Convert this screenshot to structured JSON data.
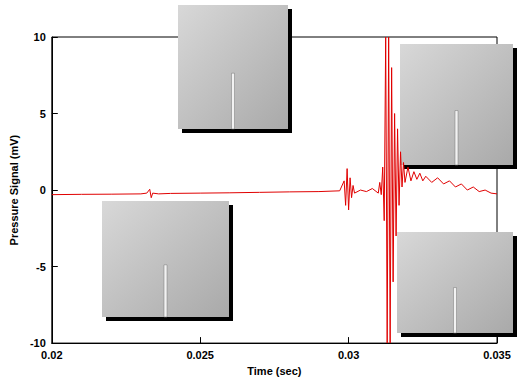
{
  "chart_data": {
    "type": "line",
    "x_label": "Time (sec)",
    "y_label": "Pressure Signal (mV)",
    "color": "#e00000",
    "grid": false,
    "xlim": [
      0.02,
      0.035
    ],
    "xticks": [
      0.02,
      0.025,
      0.03,
      0.035
    ],
    "ylim": [
      -10,
      10
    ],
    "yticks": [
      -10,
      -5,
      0,
      5,
      10
    ],
    "x": [
      0.02,
      0.021,
      0.022,
      0.023,
      0.0232,
      0.0233,
      0.02335,
      0.0234,
      0.0236,
      0.024,
      0.025,
      0.026,
      0.027,
      0.028,
      0.029,
      0.0297,
      0.02985,
      0.0299,
      0.02995,
      0.03,
      0.03005,
      0.0301,
      0.03015,
      0.0302,
      0.0304,
      0.0306,
      0.0308,
      0.031,
      0.03105,
      0.0311,
      0.03115,
      0.0312,
      0.03125,
      0.0313,
      0.03135,
      0.0314,
      0.03145,
      0.0315,
      0.03155,
      0.0316,
      0.03165,
      0.0317,
      0.03175,
      0.0318,
      0.03185,
      0.0319,
      0.032,
      0.0321,
      0.0322,
      0.0323,
      0.0324,
      0.0325,
      0.0326,
      0.0328,
      0.033,
      0.0332,
      0.0334,
      0.0336,
      0.0338,
      0.034,
      0.0342,
      0.0344,
      0.0346,
      0.0348,
      0.035
    ],
    "values": [
      -0.3,
      -0.28,
      -0.27,
      -0.25,
      -0.2,
      0.05,
      -0.5,
      -0.2,
      -0.25,
      -0.22,
      -0.2,
      -0.18,
      -0.15,
      -0.12,
      -0.1,
      -0.05,
      0.6,
      -1.0,
      1.4,
      -1.3,
      0.8,
      -0.5,
      0.3,
      -0.2,
      0.0,
      -0.1,
      0.1,
      -0.2,
      0.5,
      -0.3,
      1.5,
      -2.0,
      10,
      -10,
      10,
      -10,
      8,
      -6,
      5,
      -3,
      4,
      -1,
      2.5,
      0.2,
      1.8,
      0.5,
      1.5,
      0.6,
      1.2,
      0.7,
      1.1,
      0.6,
      0.9,
      0.5,
      0.8,
      0.4,
      0.6,
      0.2,
      0.4,
      0.0,
      0.2,
      -0.1,
      0.0,
      -0.2,
      -0.25
    ]
  }
}
